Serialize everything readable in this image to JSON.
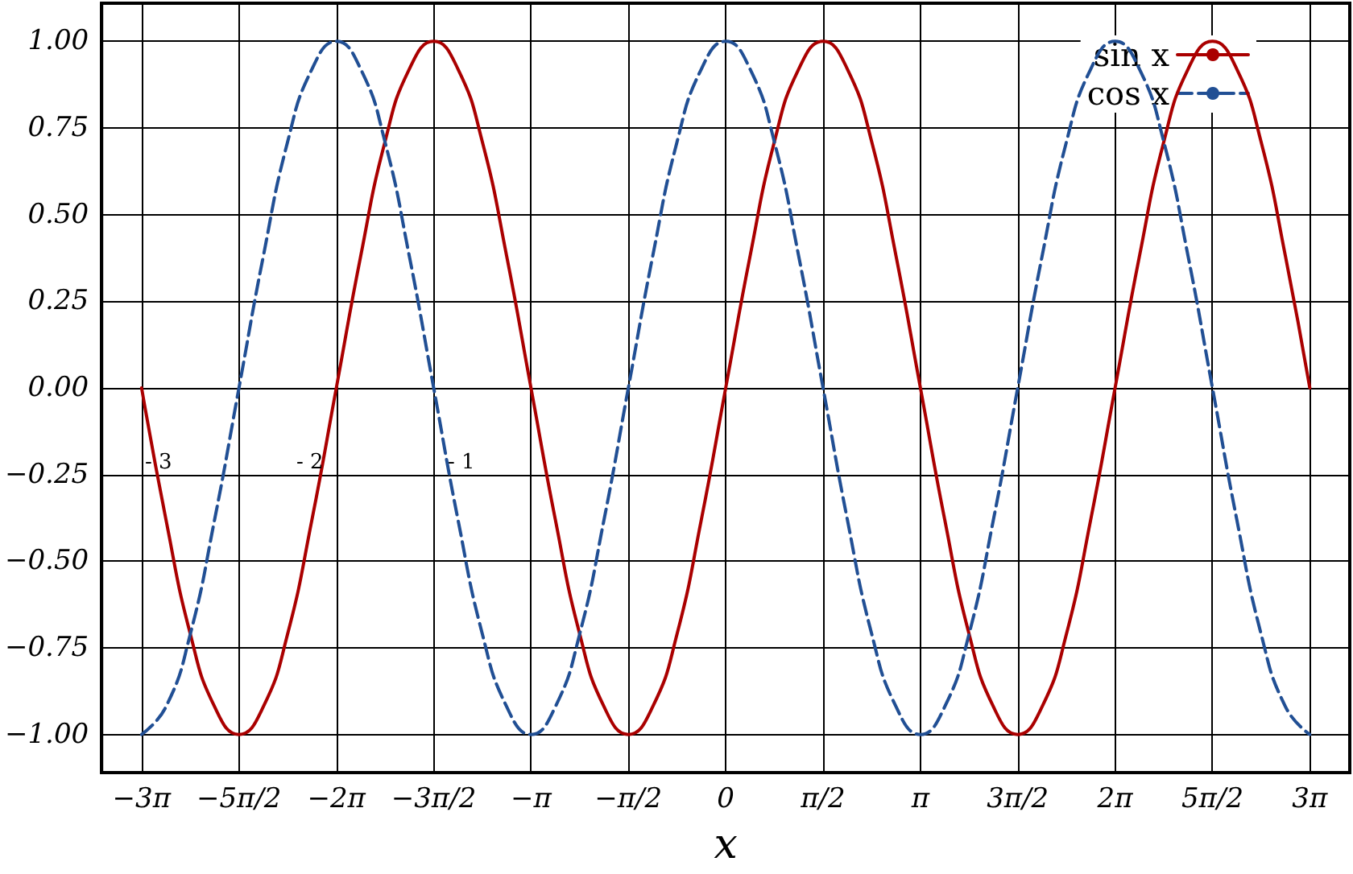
{
  "chart_data": {
    "type": "line",
    "xlabel": "x",
    "x": [
      -9.425,
      -9.032,
      -8.639,
      -8.247,
      -7.854,
      -7.461,
      -7.069,
      -6.676,
      -6.283,
      -5.89,
      -5.498,
      -5.105,
      -4.712,
      -4.32,
      -3.927,
      -3.534,
      -3.142,
      -2.749,
      -2.356,
      -1.963,
      -1.571,
      -1.178,
      -0.785,
      -0.393,
      0,
      0.393,
      0.785,
      1.178,
      1.571,
      1.963,
      2.356,
      2.749,
      3.142,
      3.534,
      3.927,
      4.32,
      4.712,
      5.105,
      5.498,
      5.89,
      6.283,
      6.676,
      7.069,
      7.461,
      7.854,
      8.247,
      8.639,
      9.032,
      9.425
    ],
    "series": [
      {
        "name": "sin x",
        "color": "#aa0000",
        "line_style": "solid",
        "values": [
          0,
          -0.38,
          -0.71,
          -0.92,
          -1,
          -0.92,
          -0.71,
          -0.38,
          0,
          0.38,
          0.71,
          0.92,
          1,
          0.92,
          0.71,
          0.38,
          0,
          -0.38,
          -0.71,
          -0.92,
          -1,
          -0.92,
          -0.71,
          -0.38,
          0,
          0.38,
          0.71,
          0.92,
          1,
          0.92,
          0.71,
          0.38,
          0,
          -0.38,
          -0.71,
          -0.92,
          -1,
          -0.92,
          -0.71,
          -0.38,
          0,
          0.38,
          0.71,
          0.92,
          1,
          0.92,
          0.71,
          0.38,
          0
        ]
      },
      {
        "name": "cos x",
        "color": "#214f94",
        "line_style": "dashed",
        "values": [
          -1,
          -0.92,
          -0.71,
          -0.38,
          0,
          0.38,
          0.71,
          0.92,
          1,
          0.92,
          0.71,
          0.38,
          0,
          -0.38,
          -0.71,
          -0.92,
          -1,
          -0.92,
          -0.71,
          -0.38,
          0,
          0.38,
          0.71,
          0.92,
          1,
          0.92,
          0.71,
          0.38,
          0,
          -0.38,
          -0.71,
          -0.92,
          -1,
          -0.92,
          -0.71,
          -0.38,
          0,
          0.38,
          0.71,
          0.92,
          1,
          0.92,
          0.71,
          0.38,
          0,
          -0.38,
          -0.71,
          -0.92,
          -1
        ]
      }
    ],
    "xlim": [
      -10.07,
      10.07
    ],
    "ylim": [
      -1.11,
      1.11
    ],
    "xticks": [
      {
        "value": -9.425,
        "label": "−3π"
      },
      {
        "value": -7.854,
        "label": "−5π/2"
      },
      {
        "value": -6.283,
        "label": "−2π"
      },
      {
        "value": -4.712,
        "label": "−3π/2"
      },
      {
        "value": -3.142,
        "label": "−π"
      },
      {
        "value": -1.571,
        "label": "−π/2"
      },
      0,
      {
        "value": 1.571,
        "label": "π/2"
      },
      {
        "value": 3.142,
        "label": "π"
      },
      {
        "value": 4.712,
        "label": "3π/2"
      },
      {
        "value": 6.283,
        "label": "2π"
      },
      {
        "value": 7.854,
        "label": "5π/2"
      },
      {
        "value": 9.425,
        "label": "3π"
      }
    ],
    "yticks": [
      {
        "value": -1,
        "label": "−1.00"
      },
      {
        "value": -0.75,
        "label": "−0.75"
      },
      {
        "value": -0.5,
        "label": "−0.50"
      },
      {
        "value": -0.25,
        "label": "−0.25"
      },
      {
        "value": 0,
        "label": "0.00"
      },
      {
        "value": 0.25,
        "label": "0.25"
      },
      {
        "value": 0.5,
        "label": "0.50"
      },
      {
        "value": 0.75,
        "label": "0.75"
      },
      {
        "value": 1,
        "label": "1.00"
      }
    ],
    "annotations": [
      "- 3",
      "- 2",
      "- 1"
    ],
    "grid": true,
    "legend": "top right",
    "marker": "none"
  }
}
